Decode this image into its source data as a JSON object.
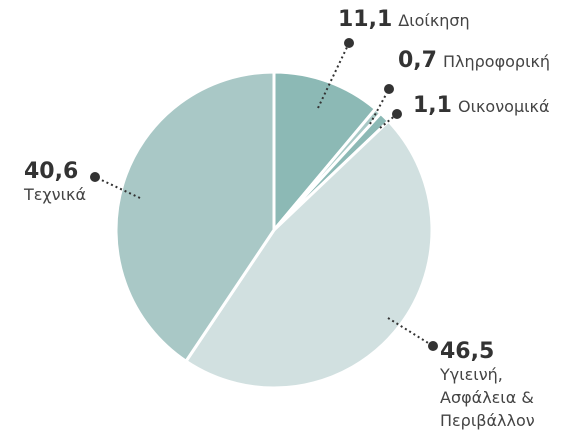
{
  "chart_data": {
    "type": "pie",
    "categories": [
      "Διοίκηση",
      "Πληροφορική",
      "Οικονομικά",
      "Υγιεινή, Ασφάλεια & Περιβάλλον",
      "Τεχνικά"
    ],
    "values": [
      11.1,
      0.7,
      1.1,
      46.5,
      40.6
    ],
    "value_labels": [
      "11,1",
      "0,7",
      "1,1",
      "46,5",
      "40,6"
    ],
    "colors": [
      "#8cb9b5",
      "#a9c9c6",
      "#8cb9b5",
      "#d1e0e0",
      "#a9c8c6"
    ]
  }
}
